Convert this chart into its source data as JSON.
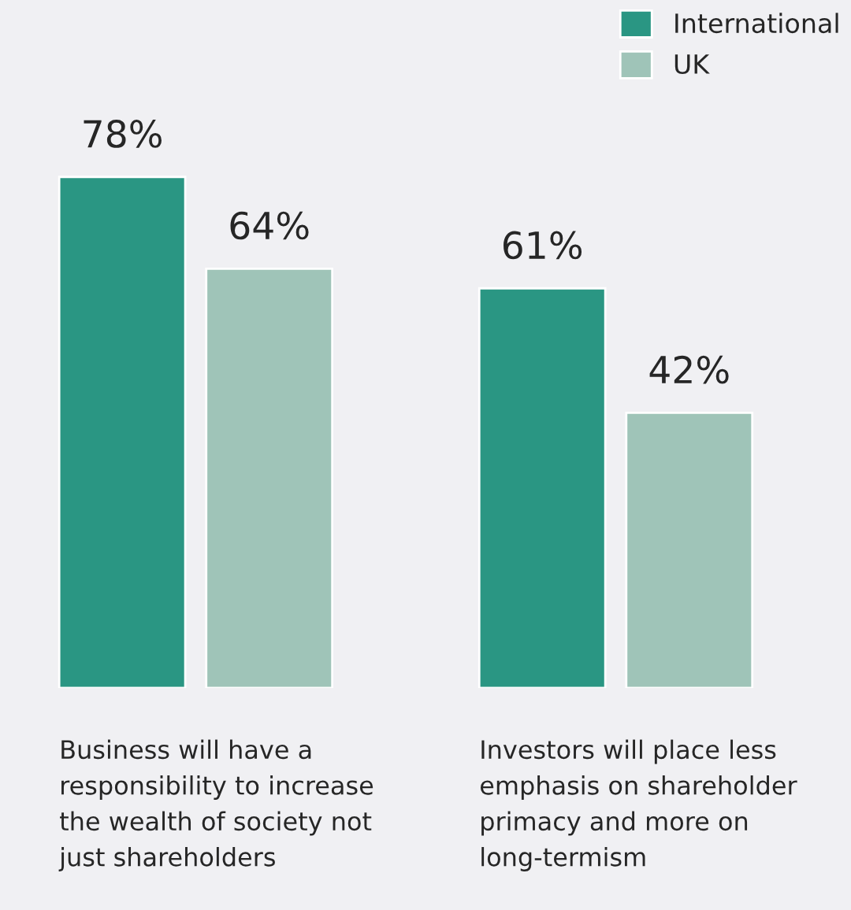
{
  "chart_data": {
    "type": "bar",
    "categories": [
      "Business will have a\nresponsibility to increase\nthe wealth of society not\njust shareholders",
      "Investors will place less\nemphasis on shareholder\nprimacy and more on\nlong-termism"
    ],
    "series": [
      {
        "name": "International",
        "color": "#2a9683",
        "values": [
          78,
          61
        ],
        "value_labels": [
          "78%",
          "61%"
        ]
      },
      {
        "name": "UK",
        "color": "#9fc4b8",
        "values": [
          64,
          42
        ],
        "value_labels": [
          "64%",
          "42%"
        ]
      }
    ],
    "ylim": [
      0,
      105
    ],
    "tick_labels": "x",
    "legend": "top right"
  }
}
